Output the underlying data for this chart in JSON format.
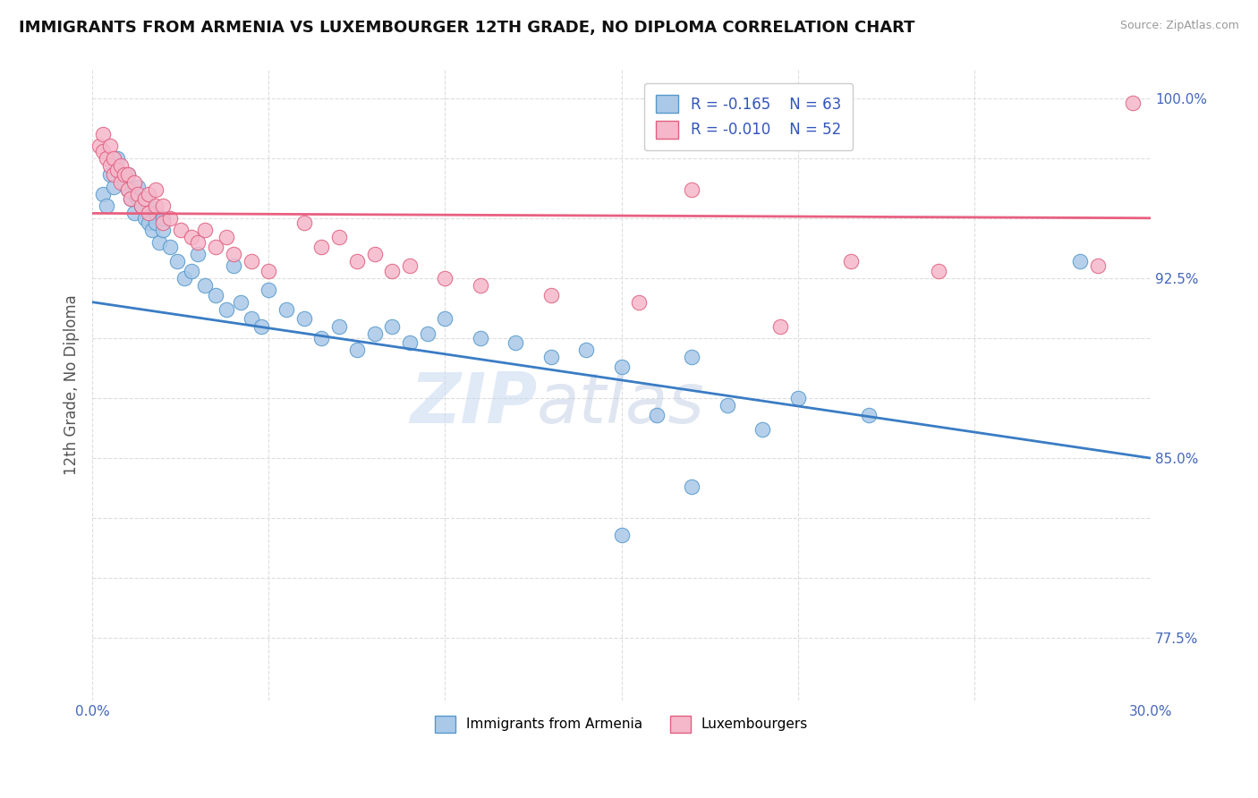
{
  "title": "IMMIGRANTS FROM ARMENIA VS LUXEMBOURGER 12TH GRADE, NO DIPLOMA CORRELATION CHART",
  "source": "Source: ZipAtlas.com",
  "ylabel": "12th Grade, No Diploma",
  "xmin": 0.0,
  "xmax": 0.3,
  "ymin": 0.749,
  "ymax": 1.012,
  "yticks": [
    0.775,
    0.8,
    0.825,
    0.85,
    0.875,
    0.9,
    0.925,
    0.95,
    0.975,
    1.0
  ],
  "ytick_labels": [
    "77.5%",
    "",
    "",
    "85.0%",
    "",
    "",
    "92.5%",
    "",
    "",
    "100.0%"
  ],
  "xticks": [
    0.0,
    0.05,
    0.1,
    0.15,
    0.2,
    0.25,
    0.3
  ],
  "xtick_labels": [
    "0.0%",
    "",
    "",
    "",
    "",
    "",
    "30.0%"
  ],
  "legend_r_armenia": "-0.165",
  "legend_n_armenia": "63",
  "legend_r_luxembourg": "-0.010",
  "legend_n_luxembourg": "52",
  "color_armenia": "#aac8e8",
  "color_luxembourg": "#f5b8ca",
  "edge_armenia": "#5599cc",
  "edge_luxembourg": "#e06080",
  "trendline_armenia_color": "#3a7cc4",
  "trendline_luxembourg_color": "#e86080",
  "watermark_zip": "ZIP",
  "watermark_atlas": "atlas",
  "armenia_x": [
    0.003,
    0.004,
    0.005,
    0.006,
    0.007,
    0.007,
    0.008,
    0.009,
    0.01,
    0.01,
    0.011,
    0.012,
    0.012,
    0.013,
    0.013,
    0.014,
    0.015,
    0.015,
    0.016,
    0.016,
    0.017,
    0.018,
    0.018,
    0.019,
    0.02,
    0.02,
    0.022,
    0.024,
    0.026,
    0.028,
    0.03,
    0.032,
    0.035,
    0.038,
    0.04,
    0.042,
    0.045,
    0.048,
    0.05,
    0.055,
    0.06,
    0.065,
    0.07,
    0.075,
    0.08,
    0.085,
    0.09,
    0.095,
    0.1,
    0.11,
    0.12,
    0.13,
    0.14,
    0.15,
    0.16,
    0.17,
    0.18,
    0.19,
    0.2,
    0.22,
    0.28,
    0.15,
    0.17
  ],
  "armenia_y": [
    0.96,
    0.955,
    0.968,
    0.963,
    0.97,
    0.975,
    0.968,
    0.965,
    0.962,
    0.968,
    0.958,
    0.96,
    0.952,
    0.958,
    0.963,
    0.955,
    0.95,
    0.958,
    0.948,
    0.955,
    0.945,
    0.952,
    0.948,
    0.94,
    0.945,
    0.95,
    0.938,
    0.932,
    0.925,
    0.928,
    0.935,
    0.922,
    0.918,
    0.912,
    0.93,
    0.915,
    0.908,
    0.905,
    0.92,
    0.912,
    0.908,
    0.9,
    0.905,
    0.895,
    0.902,
    0.905,
    0.898,
    0.902,
    0.908,
    0.9,
    0.898,
    0.892,
    0.895,
    0.888,
    0.868,
    0.892,
    0.872,
    0.862,
    0.875,
    0.868,
    0.932,
    0.818,
    0.838
  ],
  "luxembourg_x": [
    0.002,
    0.003,
    0.003,
    0.004,
    0.005,
    0.005,
    0.006,
    0.006,
    0.007,
    0.008,
    0.008,
    0.009,
    0.01,
    0.01,
    0.011,
    0.012,
    0.013,
    0.014,
    0.015,
    0.016,
    0.016,
    0.018,
    0.018,
    0.02,
    0.02,
    0.022,
    0.025,
    0.028,
    0.03,
    0.032,
    0.035,
    0.038,
    0.04,
    0.045,
    0.05,
    0.06,
    0.065,
    0.07,
    0.075,
    0.08,
    0.085,
    0.09,
    0.1,
    0.11,
    0.13,
    0.155,
    0.17,
    0.195,
    0.215,
    0.24,
    0.285,
    0.295
  ],
  "luxembourg_y": [
    0.98,
    0.978,
    0.985,
    0.975,
    0.972,
    0.98,
    0.968,
    0.975,
    0.97,
    0.965,
    0.972,
    0.968,
    0.962,
    0.968,
    0.958,
    0.965,
    0.96,
    0.955,
    0.958,
    0.952,
    0.96,
    0.955,
    0.962,
    0.948,
    0.955,
    0.95,
    0.945,
    0.942,
    0.94,
    0.945,
    0.938,
    0.942,
    0.935,
    0.932,
    0.928,
    0.948,
    0.938,
    0.942,
    0.932,
    0.935,
    0.928,
    0.93,
    0.925,
    0.922,
    0.918,
    0.915,
    0.962,
    0.905,
    0.932,
    0.928,
    0.93,
    0.998
  ]
}
